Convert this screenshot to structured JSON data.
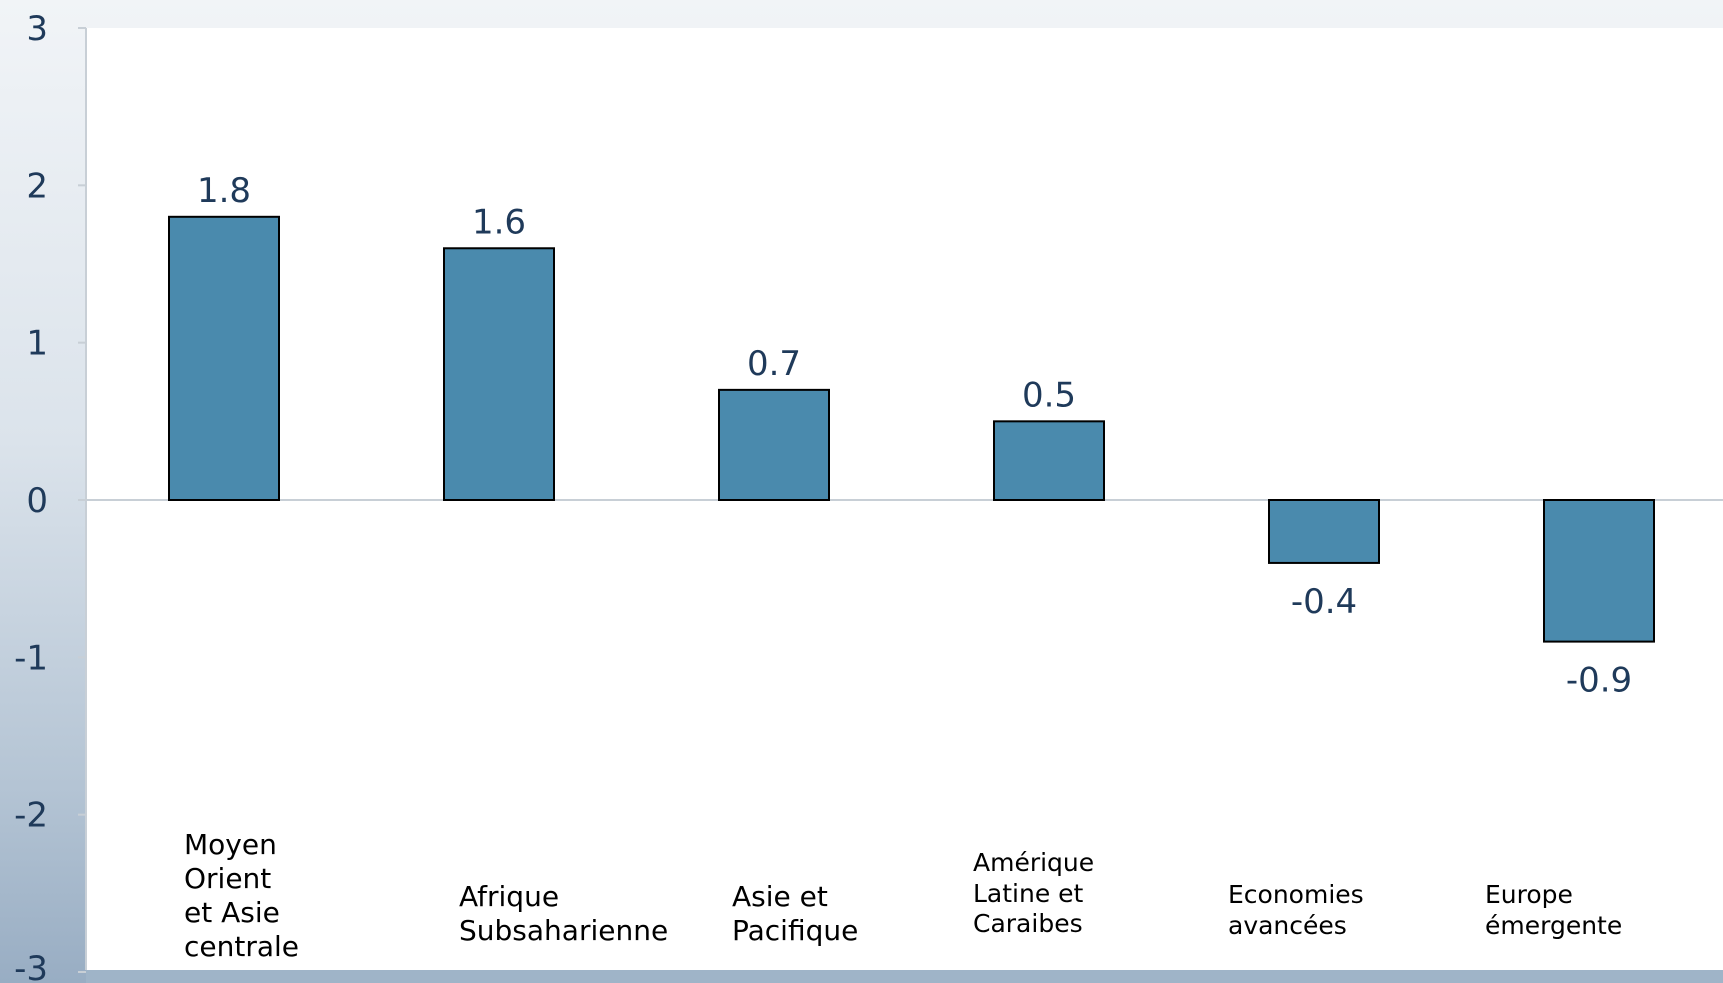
{
  "chart_data": {
    "type": "bar",
    "title": "",
    "xlabel": "",
    "ylabel": "",
    "ylim": [
      -3,
      3
    ],
    "yticks": [
      3,
      2,
      1,
      0,
      -1,
      -2,
      -3
    ],
    "grid": false,
    "legend": "none",
    "categories": [
      "Moyen\nOrient\net Asie\ncentrale",
      "Afrique\nSubsaharienne",
      "Asie et\nPacifique",
      "Amérique\nLatine et\nCaraibes",
      "Economies\navancées",
      "Europe\némergente"
    ],
    "values": [
      1.8,
      1.6,
      0.7,
      0.5,
      -0.4,
      -0.9
    ],
    "value_labels": [
      "1.8",
      "1.6",
      "0.7",
      "0.5",
      "-0.4",
      "-0.9"
    ],
    "colors": {
      "bar_fill": "#4a8aad",
      "bar_stroke": "#000000",
      "value_label": "#1f3a5a",
      "tick_label": "#1f3a5a",
      "axis": "#c8cfd6",
      "plot_background": "#ffffff",
      "category_label": "#000000"
    }
  }
}
